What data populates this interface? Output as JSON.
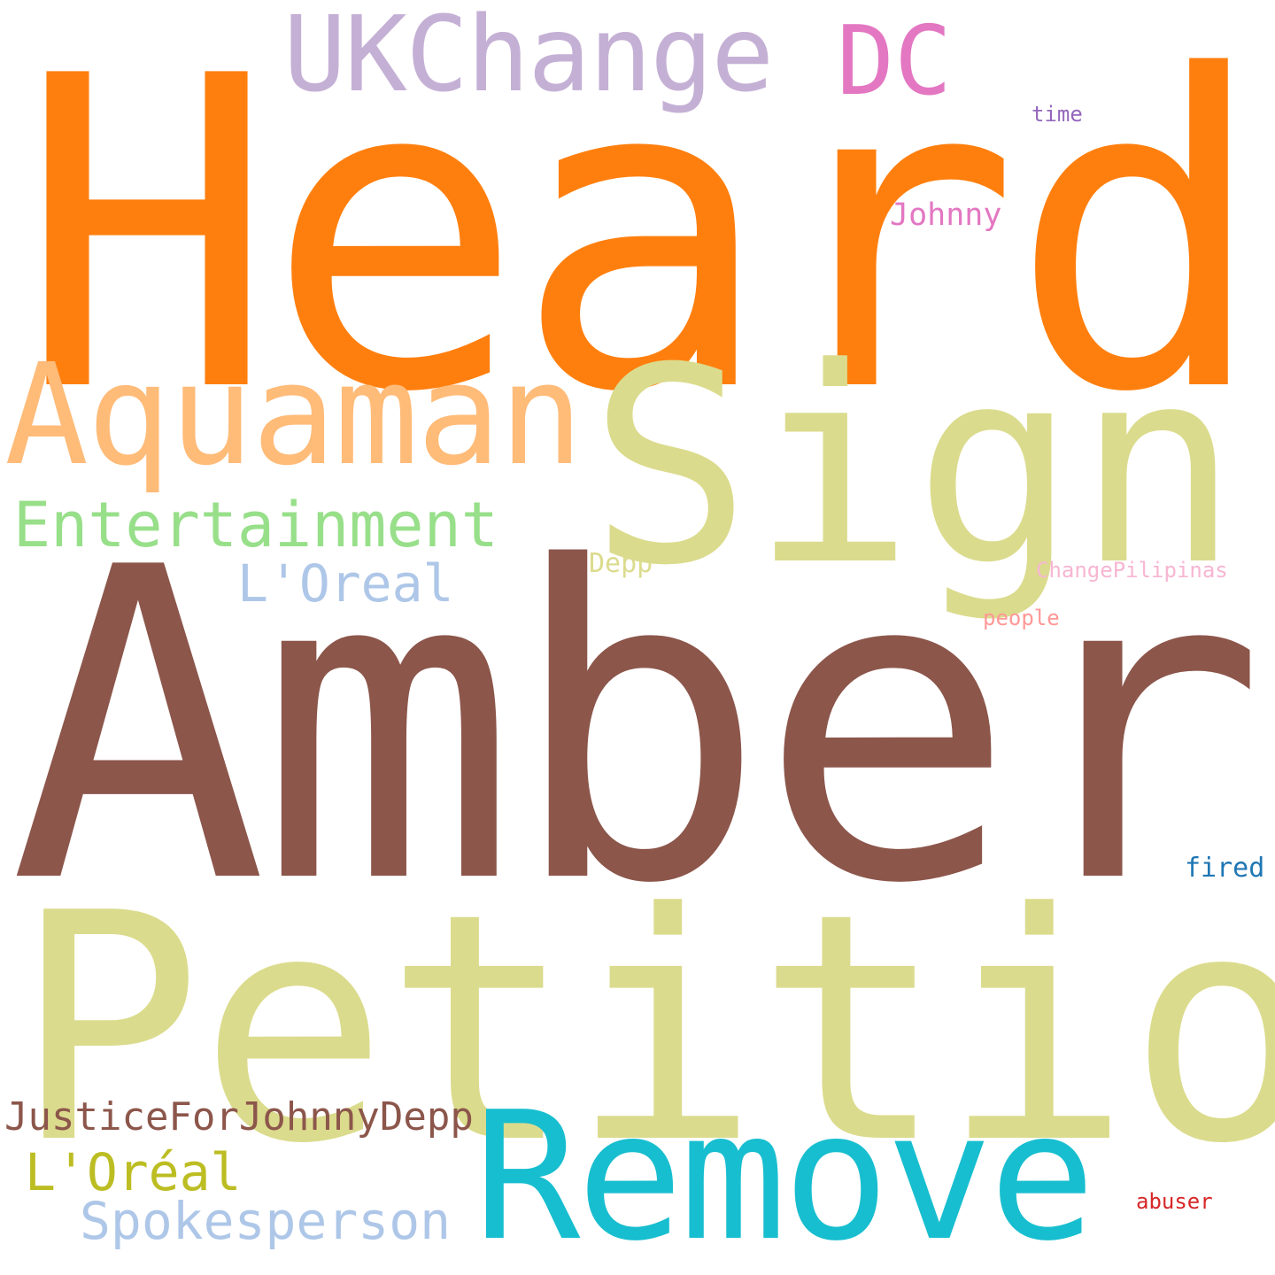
{
  "cloud": {
    "background": "#ffffff",
    "words": {
      "heard": {
        "text": "Heard",
        "color": "#ff7f0e"
      },
      "amber": {
        "text": "Amber",
        "color": "#8c564b"
      },
      "petition": {
        "text": "Petition",
        "color": "#dbdb8d"
      },
      "sign": {
        "text": "Sign",
        "color": "#dbdb8d"
      },
      "remove": {
        "text": "Remove",
        "color": "#17becf"
      },
      "aquaman": {
        "text": "Aquaman",
        "color": "#ffbb78"
      },
      "ukchange": {
        "text": "UKChange",
        "color": "#c5b0d5"
      },
      "dc": {
        "text": "DC",
        "color": "#e377c2"
      },
      "entertainment": {
        "text": "Entertainment",
        "color": "#98df8a"
      },
      "loreal1": {
        "text": "L'Oreal",
        "color": "#aec7e8"
      },
      "justice": {
        "text": "JusticeForJohnnyDepp",
        "color": "#8c564b"
      },
      "loreal2": {
        "text": "L'Oréal",
        "color": "#bcbd22"
      },
      "spokesperson": {
        "text": "Spokesperson",
        "color": "#aec7e8"
      },
      "johnny": {
        "text": "Johnny",
        "color": "#e377c2"
      },
      "time": {
        "text": "time",
        "color": "#9467bd"
      },
      "depp": {
        "text": "Depp",
        "color": "#dbdb8d"
      },
      "changepilipinas": {
        "text": "ChangePilipinas",
        "color": "#f7b6d2"
      },
      "people": {
        "text": "people",
        "color": "#ff9896"
      },
      "fired": {
        "text": "fired",
        "color": "#1f77b4"
      },
      "abuser": {
        "text": "abuser",
        "color": "#d62728"
      }
    }
  }
}
